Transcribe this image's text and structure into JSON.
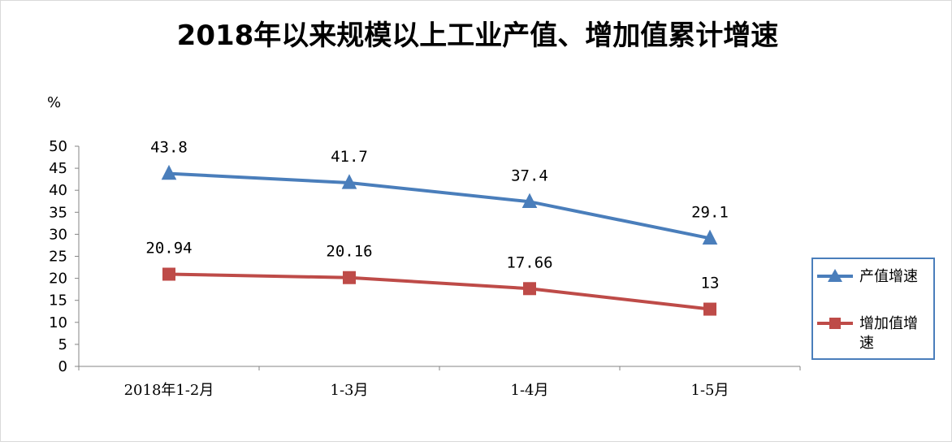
{
  "chart_data": {
    "type": "line",
    "title": "2018年以来规模以上工业产值、增加值累计增速",
    "ylabel": "%",
    "ylim": [
      0,
      50
    ],
    "yticks": [
      0,
      5,
      10,
      15,
      20,
      25,
      30,
      35,
      40,
      45,
      50
    ],
    "categories": [
      "2018年1-2月",
      "1-3月",
      "1-4月",
      "1-5月"
    ],
    "series": [
      {
        "name": "产值增速",
        "values": [
          43.8,
          41.7,
          37.4,
          29.1
        ],
        "labels": [
          "43.8",
          "41.7",
          "37.4",
          "29.1"
        ],
        "color": "#4a7ebb",
        "marker": "triangle"
      },
      {
        "name": "增加值增速",
        "values": [
          20.94,
          20.16,
          17.66,
          13
        ],
        "labels": [
          "20.94",
          "20.16",
          "17.66",
          "13"
        ],
        "color": "#be4b48",
        "marker": "square"
      }
    ],
    "legend_position": "right",
    "legend_border_color": "#4a7ebb",
    "grid": false
  }
}
